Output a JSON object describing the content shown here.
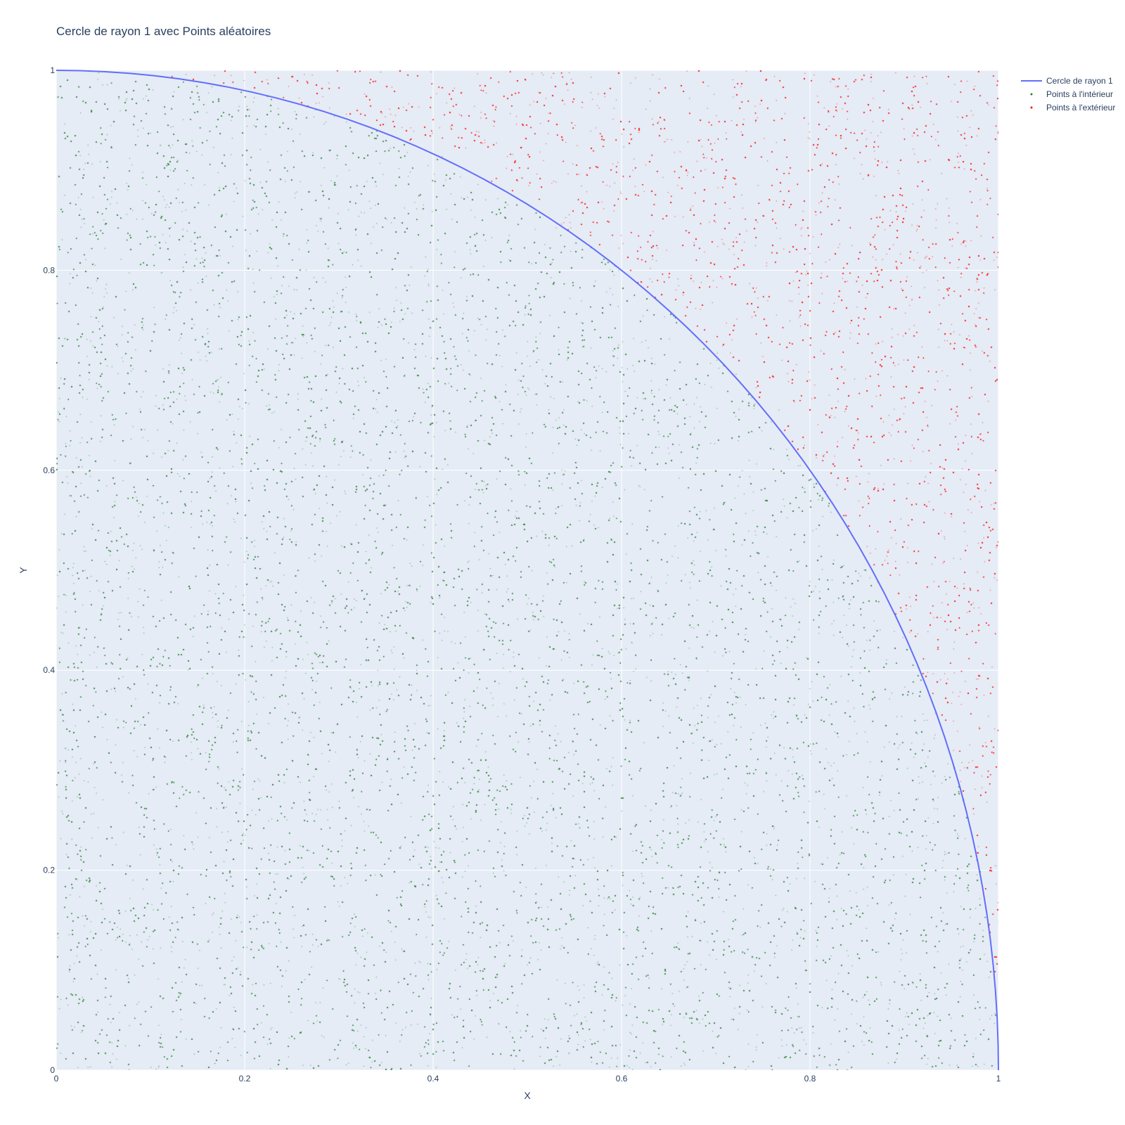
{
  "chart_data": {
    "type": "scatter",
    "title": "Cercle de rayon 1 avec Points aléatoires",
    "xlabel": "X",
    "ylabel": "Y",
    "xlim": [
      0,
      1
    ],
    "ylim": [
      0,
      1
    ],
    "x_ticks": [
      "0",
      "0.2",
      "0.4",
      "0.6",
      "0.8",
      "1"
    ],
    "y_ticks": [
      "0",
      "0.2",
      "0.4",
      "0.6",
      "0.8",
      "1"
    ],
    "grid": true,
    "legend_position": "top-right, outside plot",
    "background_color": "#e5ecf6",
    "series": [
      {
        "name": "Cercle de rayon 1",
        "kind": "line",
        "color": "#636efa",
        "equation": "x^2 + y^2 = 1, 0 <= x <= 1, 0 <= y <= 1"
      },
      {
        "name": "Points à l'intérieur",
        "kind": "markers",
        "color": "#2e7d32",
        "condition": "x^2 + y^2 <= 1",
        "distribution": "uniform random on [0,1] x [0,1]"
      },
      {
        "name": "Points à l'extérieur",
        "kind": "markers",
        "color": "#ff0000",
        "condition": "x^2 + y^2 > 1",
        "distribution": "uniform random on [0,1] x [0,1]"
      }
    ]
  }
}
